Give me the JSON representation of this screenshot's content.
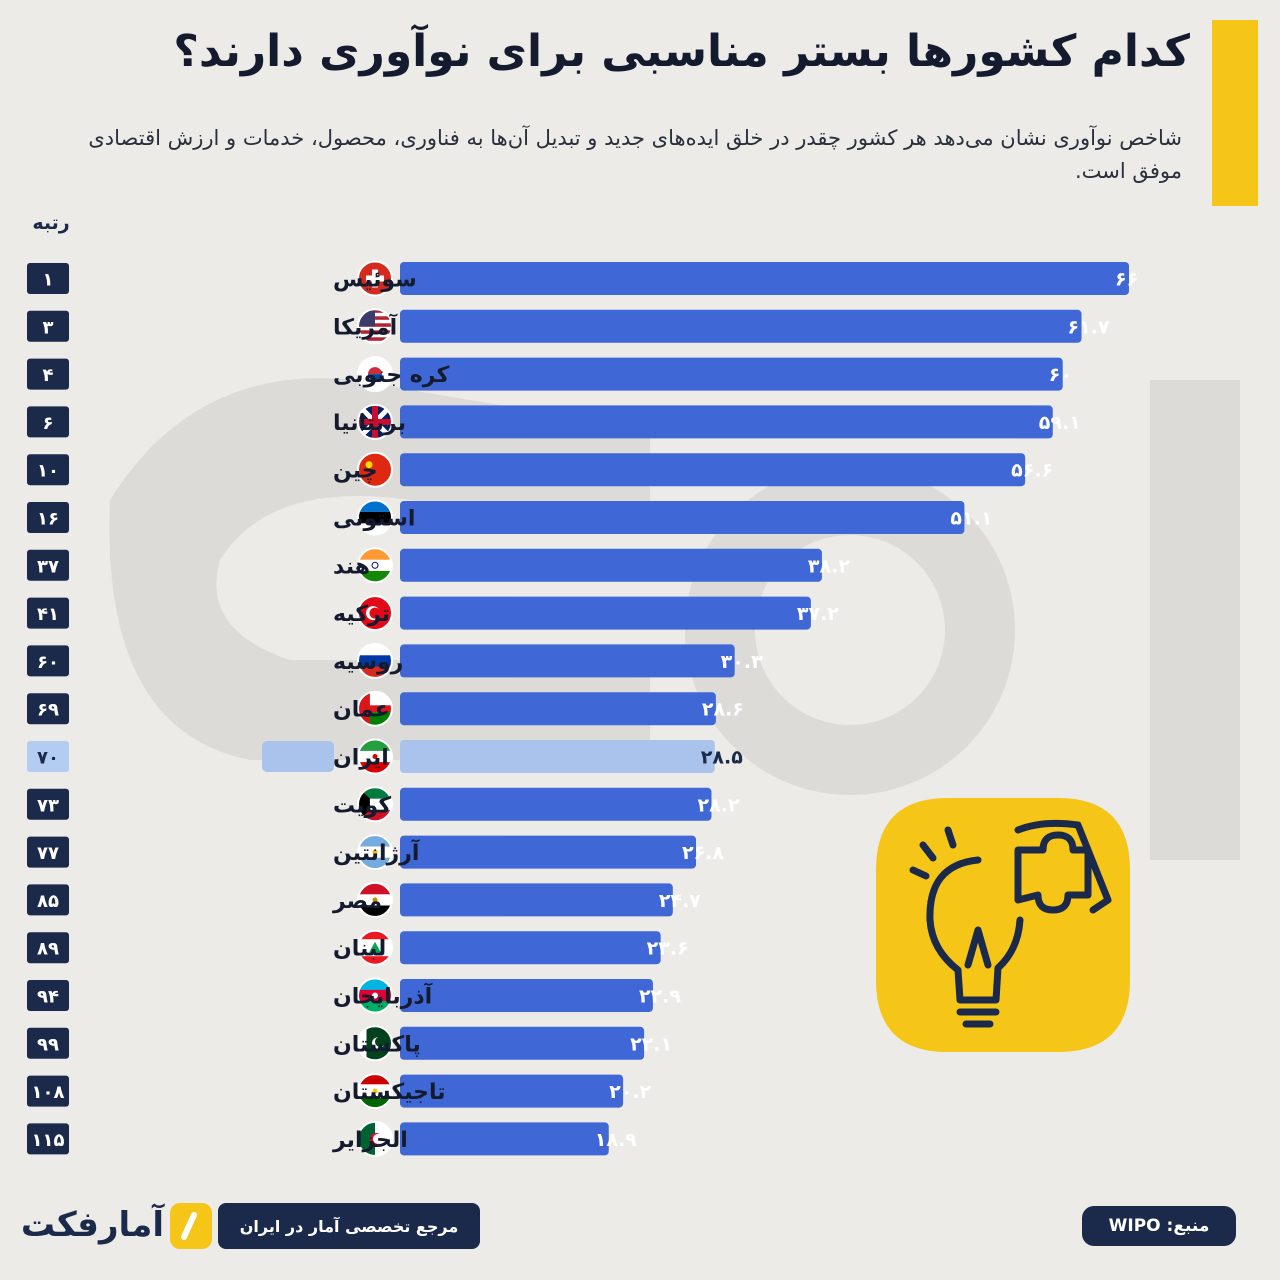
{
  "title": "کدام کشورها بستر مناسبی برای نوآوری دارند؟",
  "subtitle": "شاخص نوآوری نشان می‌دهد هر کشور چقدر در خلق ایده‌های جدید و تبدیل آن‌ها به فناوری، محصول، خدمات و ارزش اقتصادی موفق است.",
  "rank_header": "رتبه",
  "colors": {
    "bar": "#3f67d6",
    "bar_highlight": "#a9c3ec",
    "rank_box": "#1b2a4a",
    "rank_box_highlight": "#b3cdf2",
    "accent": "#f5c518"
  },
  "chart_data": {
    "type": "bar",
    "orientation": "horizontal",
    "title": "کدام کشورها بستر مناسبی برای نوآوری دارند؟",
    "xlim": [
      0,
      66
    ],
    "categories": [
      "سوئیس",
      "آمریکا",
      "کره جنوبی",
      "بریتانیا",
      "چین",
      "استونی",
      "هند",
      "ترکیه",
      "روسیه",
      "عمان",
      "ایران",
      "کویت",
      "آرژانتین",
      "مصر",
      "لبنان",
      "آذربایجان",
      "پاکستان",
      "تاجیکستان",
      "الجزایر"
    ],
    "values": [
      66,
      61.7,
      60,
      59.1,
      56.6,
      51.1,
      38.2,
      37.2,
      30.3,
      28.6,
      28.5,
      28.2,
      26.8,
      24.7,
      23.6,
      22.9,
      22.1,
      20.2,
      18.9
    ],
    "value_labels": [
      "۶۶",
      "۶۱.۷",
      "۶۰",
      "۵۹.۱",
      "۵۶.۶",
      "۵۱.۱",
      "۳۸.۲",
      "۳۷.۲",
      "۳۰.۳",
      "۲۸.۶",
      "۲۸.۵",
      "۲۸.۲",
      "۲۶.۸",
      "۲۴.۷",
      "۲۳.۶",
      "۲۲.۹",
      "۲۲.۱",
      "۲۰.۲",
      "۱۸.۹"
    ],
    "ranks": [
      "۱",
      "۳",
      "۴",
      "۶",
      "۱۰",
      "۱۶",
      "۳۷",
      "۴۱",
      "۶۰",
      "۶۹",
      "۷۰",
      "۷۳",
      "۷۷",
      "۸۵",
      "۸۹",
      "۹۴",
      "۹۹",
      "۱۰۸",
      "۱۱۵"
    ],
    "highlight_category": "ایران",
    "flag_icons": [
      "flag-switzerland-icon",
      "flag-usa-icon",
      "flag-south-korea-icon",
      "flag-uk-icon",
      "flag-china-icon",
      "flag-estonia-icon",
      "flag-india-icon",
      "flag-turkey-icon",
      "flag-russia-icon",
      "flag-oman-icon",
      "flag-iran-icon",
      "flag-kuwait-icon",
      "flag-argentina-icon",
      "flag-egypt-icon",
      "flag-lebanon-icon",
      "flag-azerbaijan-icon",
      "flag-pakistan-icon",
      "flag-tajikistan-icon",
      "flag-algeria-icon"
    ],
    "grid": false
  },
  "footer": {
    "source": "منبع: WIPO",
    "reference": "مرجع تخصصی آمار در ایران",
    "brand": "آمارفکت"
  },
  "icons": {
    "badge": "puzzle-lightbulb-icon",
    "brand": "brand-logo-icon"
  }
}
